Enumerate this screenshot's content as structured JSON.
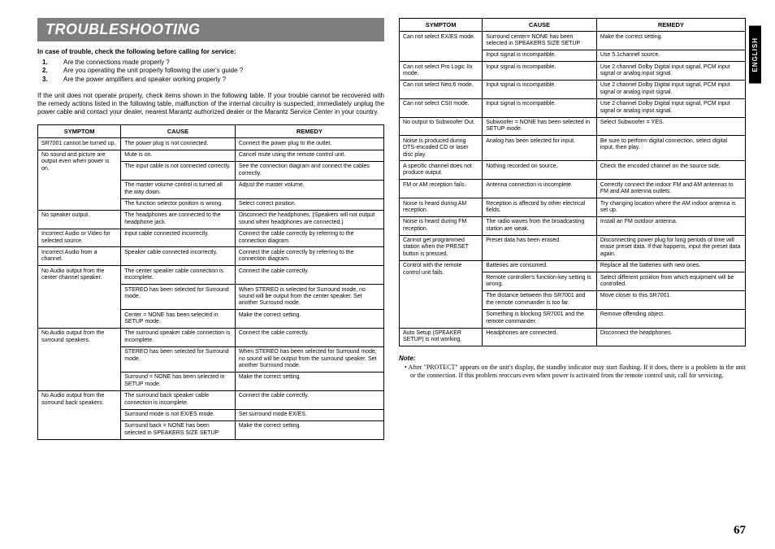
{
  "lang_tab": "ENGLISH",
  "page_number": "67",
  "heading": "TROUBLESHOOTING",
  "intro_line": "In case of trouble, check the following before calling for service:",
  "check_items": [
    "Are the connections made properly ?",
    "Are you operating the unit properly following the user's guide ?",
    "Are the power amplifiers and speaker working properly ?"
  ],
  "intro_para": "If the unit does not operate properly, check items shown in the following table.\nIf your trouble cannot be recovered with the remedy actions listed in the following table, malfunction of the internal circuitry is suspected; immediately unplug the power cable and contact your dealer, nearest Marantz authorized dealer or the Marantz Service Center in your country.",
  "table_headers": {
    "symptom": "SYMPTOM",
    "cause": "CAUSE",
    "remedy": "REMEDY"
  },
  "table1": [
    {
      "s": "SR7001 cannot be turned up.",
      "c": "The power plug is not connected.",
      "r": "Connect the power plug to the outlet.",
      "srs": 1
    },
    {
      "s": "No sound and picture are output even when power is on.",
      "c": "Mute is on.",
      "r": "Cancel mute using the remote control unit.",
      "srs": 4
    },
    {
      "c": "The input cable is not connected correctly.",
      "r": "See the connection diagram and connect the cables correctly."
    },
    {
      "c": "The master volume control is turned all the way down.",
      "r": "Adjust the master volume."
    },
    {
      "c": "The function selector position is wrong.",
      "r": "Select correct position."
    },
    {
      "s": "No speaker output.",
      "c": "The headphones are connected to the headphone jack.",
      "r": "Disconnect the headphones. (Speakers will not output sound when headphones are connected.)",
      "srs": 1
    },
    {
      "s": "Incorrect Audio or Video for selected source.",
      "c": "Input cable connected incorrectly.",
      "r": "Connect the cable correctly by referring to the connection diagram.",
      "srs": 1
    },
    {
      "s": "Incorrect Audio from a channel.",
      "c": "Speaker cable connected incorrectly.",
      "r": "Connect the cable correctly by referring to the connection diagram.",
      "srs": 1
    },
    {
      "s": "No Audio output from the center channel speaker.",
      "c": "The center speaker cable connection is incomplete.",
      "r": "Connect the cable correctly.",
      "srs": 3
    },
    {
      "c": "STEREO has been selected for Surround mode.",
      "r": "When STEREO is selected for Surround mode, no sound will be output from the center speaker. Set another Surround mode."
    },
    {
      "c": "Center = NONE has been selected in SETUP mode.",
      "r": "Make the correct setting."
    },
    {
      "s": "No Audio output from the surround speakers.",
      "c": "The surround speaker cable connection is incomplete.",
      "r": "Connect the cable correctly.",
      "srs": 3
    },
    {
      "c": "STEREO has been selected for Surround mode.",
      "r": "When STEREO has been selected for Surround mode, no sound will be output from the surround speaker. Set another Surround mode."
    },
    {
      "c": "Surround = NONE has been selected in SETUP mode.",
      "r": "Make the correct setting."
    },
    {
      "s": "No Audio output from the surround back speakers.",
      "c": "The surround back speaker cable connection is incomplete.",
      "r": "Connect the cable correctly.",
      "srs": 3
    },
    {
      "c": "Surround mode is not EX/ES mode.",
      "r": "Set surround mode EX/ES."
    },
    {
      "c": "Surround back = NONE has been selected in SPEAKERS SIZE SETUP",
      "r": "Make the correct setting."
    }
  ],
  "table2": [
    {
      "s": "Can not select EX/ES mode.",
      "c": "Surround center= NONE has been selected in SPEAKERS SIZE SETUP",
      "r": "Make the correct setting.",
      "srs": 2
    },
    {
      "c": "Input signal is incompatible.",
      "r": "Use 5.1channel source."
    },
    {
      "s": "Can not select Pro Logic IIx mode.",
      "c": "Input signal is incompatible.",
      "r": "Use 2 channel Dolby Digital input signal, PCM input signal or analog input signal.",
      "srs": 1
    },
    {
      "s": "Can not select Neo:6 mode.",
      "c": "Input signal is incompatible.",
      "r": "Use 2 channel Dolby Digital input signal, PCM input signal or analog input signal.",
      "srs": 1
    },
    {
      "s": "Can not select CSII mode.",
      "c": "Input signal is incompatible.",
      "r": "Use 2 channel Dolby Digital input signal, PCM input signal or analog input signal.",
      "srs": 1
    },
    {
      "s": "No output to Subwoofer Out.",
      "c": "Subwoofer = NONE has been selected in SETUP mode.",
      "r": "Select Subwoofer = YES.",
      "srs": 1
    },
    {
      "s": "Noise is produced during DTS-encoded CD or laser disc play.",
      "c": "Analog has been selected for input.",
      "r": "Be sure to perform digital connection, select digital input, then play.",
      "srs": 1
    },
    {
      "s": "A specific channel does not produce output.",
      "c": "Nothing recorded on source.",
      "r": "Check the encoded channel on the source side.",
      "srs": 1
    },
    {
      "s": "FM or AM reception fails.",
      "c": "Antenna connection is incomplete.",
      "r": "Correctly connect the indoor FM and AM antennas to FM and AM antenna outlets.",
      "srs": 1
    },
    {
      "s": "Noise is heard during AM reception.",
      "c": "Reception is affected by other electrical fields.",
      "r": "Try changing location where the AM indoor antenna is set up.",
      "srs": 1
    },
    {
      "s": "Noise is heard during FM reception.",
      "c": "The radio waves from the broadcasting station are weak.",
      "r": "Install an FM outdoor antenna.",
      "srs": 1
    },
    {
      "s": "Cannot get programmed station when the PRESET button is pressed.",
      "c": "Preset data has been erased.",
      "r": "Disconnecting power plug for long periods of time will erase preset data. If that happens, input the preset data again.",
      "srs": 1
    },
    {
      "s": "Control with the remote control unit fails.",
      "c": "Batteries are consumed.",
      "r": "Replace all the batteries with new ones.",
      "srs": 4
    },
    {
      "c": "Remote controller's function-key setting is wrong.",
      "r": "Select different position from which equipment will be controlled."
    },
    {
      "c": "The distance between this SR7001 and the remote commander is too far.",
      "r": "Move closer to this SR7001."
    },
    {
      "c": "Something is blocking SR7001 and the remote commander.",
      "r": "Remove offending object."
    },
    {
      "s": "Auto Setup (SPEAKER SETUP) is not working.",
      "c": "Headphones are connected.",
      "r": "Disconnect the headphones.",
      "srs": 1
    }
  ],
  "note": {
    "label": "Note:",
    "body": "After \"PROTECT\" appears on the unit's display, the standby indicator may start flashing. If it does, there is a problem in the unit or the connection. If this problem reoccurs even when power is activated from the remote control unit, call for servicing."
  }
}
